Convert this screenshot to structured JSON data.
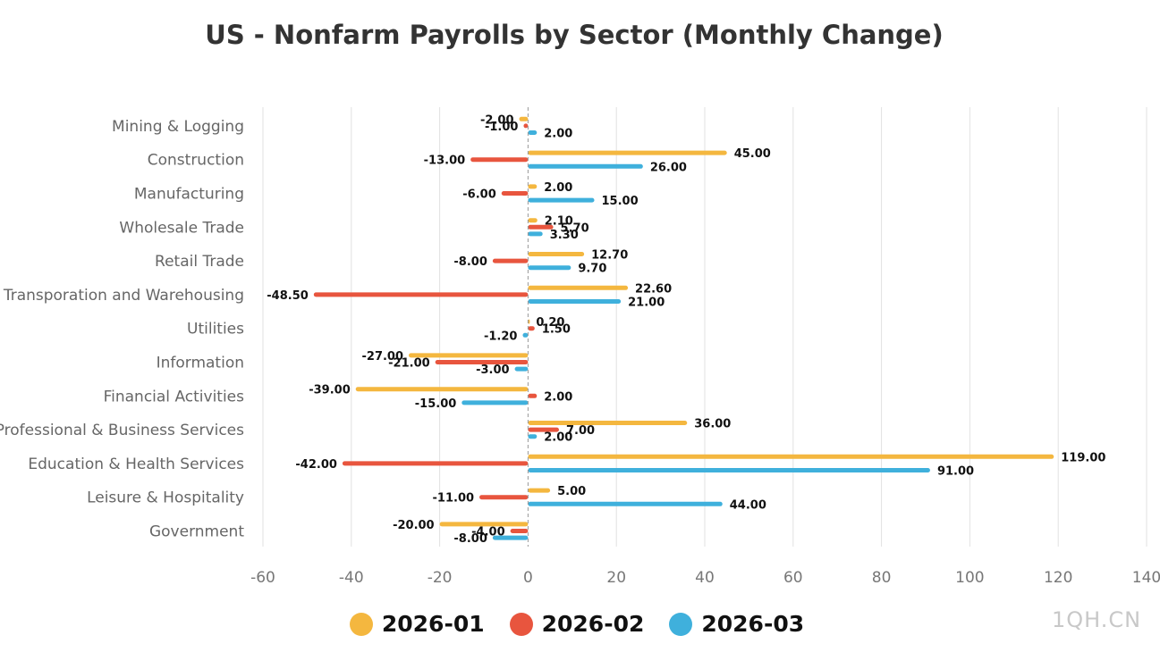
{
  "chart_data": {
    "type": "bar",
    "orientation": "horizontal",
    "title": "US - Nonfarm Payrolls by Sector (Monthly Change)",
    "xlabel": "",
    "ylabel": "",
    "xlim": [
      -60,
      140
    ],
    "xticks": [
      -60,
      -40,
      -20,
      0,
      20,
      40,
      60,
      80,
      100,
      120,
      140
    ],
    "grid": true,
    "legend_position": "bottom",
    "categories": [
      "Mining & Logging",
      "Construction",
      "Manufacturing",
      "Wholesale Trade",
      "Retail Trade",
      "Transporation and Warehousing",
      "Utilities",
      "Information",
      "Financial Activities",
      "Professional & Business Services",
      "Education & Health Services",
      "Leisure & Hospitality",
      "Government"
    ],
    "series": [
      {
        "name": "2026-01",
        "color": "#f4b73f",
        "values": [
          -2.0,
          45.0,
          2.0,
          2.1,
          12.7,
          22.6,
          0.2,
          -27.0,
          -39.0,
          36.0,
          119.0,
          5.0,
          -20.0
        ],
        "labels": [
          "-2.00",
          "45.00",
          "2.00",
          "2.10",
          "12.70",
          "22.60",
          "0.20",
          "-27.00",
          "-39.00",
          "36.00",
          "119.00",
          "5.00",
          "-20.00"
        ]
      },
      {
        "name": "2026-02",
        "color": "#e8553e",
        "values": [
          -1.0,
          -13.0,
          -6.0,
          5.7,
          -8.0,
          -48.5,
          1.5,
          -21.0,
          2.0,
          7.0,
          -42.0,
          -11.0,
          -4.0
        ],
        "labels": [
          "-1.00",
          "-13.00",
          "-6.00",
          "5.70",
          "-8.00",
          "-48.50",
          "1.50",
          "-21.00",
          "2.00",
          "7.00",
          "-42.00",
          "-11.00",
          "-4.00"
        ]
      },
      {
        "name": "2026-03",
        "color": "#3fb0dc",
        "values": [
          2.0,
          26.0,
          15.0,
          3.3,
          9.7,
          21.0,
          -1.2,
          -3.0,
          -15.0,
          2.0,
          91.0,
          44.0,
          -8.0
        ],
        "labels": [
          "2.00",
          "26.00",
          "15.00",
          "3.30",
          "9.70",
          "21.00",
          "-1.20",
          "-3.00",
          "-15.00",
          "2.00",
          "91.00",
          "44.00",
          "-8.00"
        ]
      }
    ]
  },
  "watermark": "1QH.CN"
}
